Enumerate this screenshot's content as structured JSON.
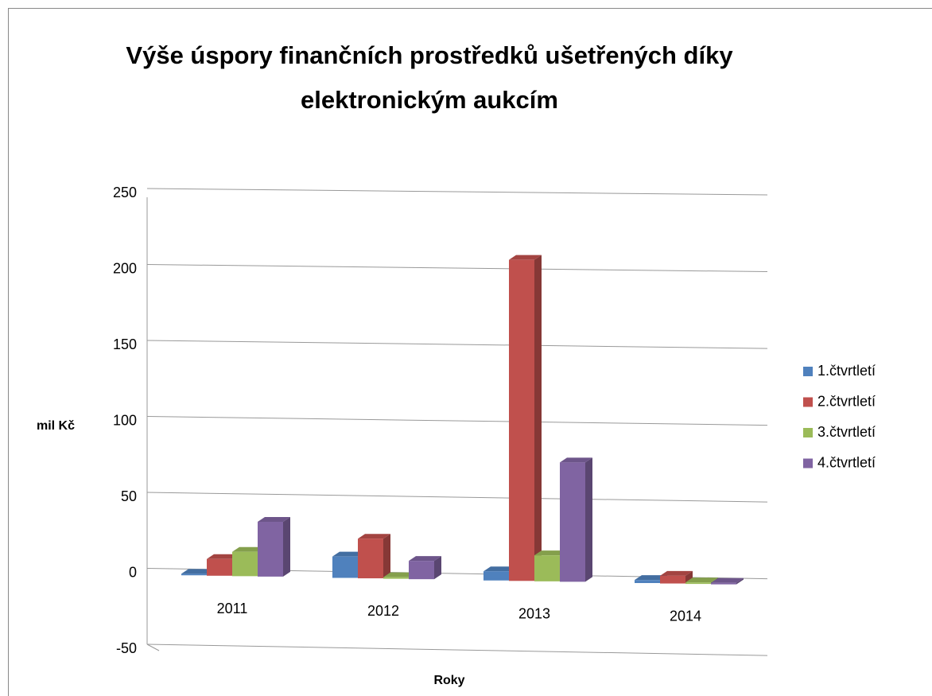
{
  "chart_data": {
    "type": "bar3d",
    "title": "Výše úspory finančních prostředků ušetřených díky elektronickým aukcím",
    "y_label": "mil Kč",
    "x_label": "Roky",
    "categories": [
      "2011",
      "2012",
      "2013",
      "2014"
    ],
    "series": [
      {
        "name": "1.čtvrtletí",
        "color": "#4f81bd",
        "values": [
          1,
          14,
          6,
          2
        ]
      },
      {
        "name": "2.čtvrtletí",
        "color": "#c0504d",
        "values": [
          11,
          26,
          210,
          5
        ]
      },
      {
        "name": "3.čtvrtletí",
        "color": "#9bbb59",
        "values": [
          16,
          1,
          17,
          1
        ]
      },
      {
        "name": "4.čtvrtletí",
        "color": "#8064a2",
        "values": [
          36,
          12,
          78,
          1
        ]
      }
    ],
    "ylim": [
      -50,
      250
    ],
    "yticks": [
      -50,
      0,
      50,
      100,
      150,
      200,
      250
    ],
    "grid": true,
    "legend": "right"
  }
}
